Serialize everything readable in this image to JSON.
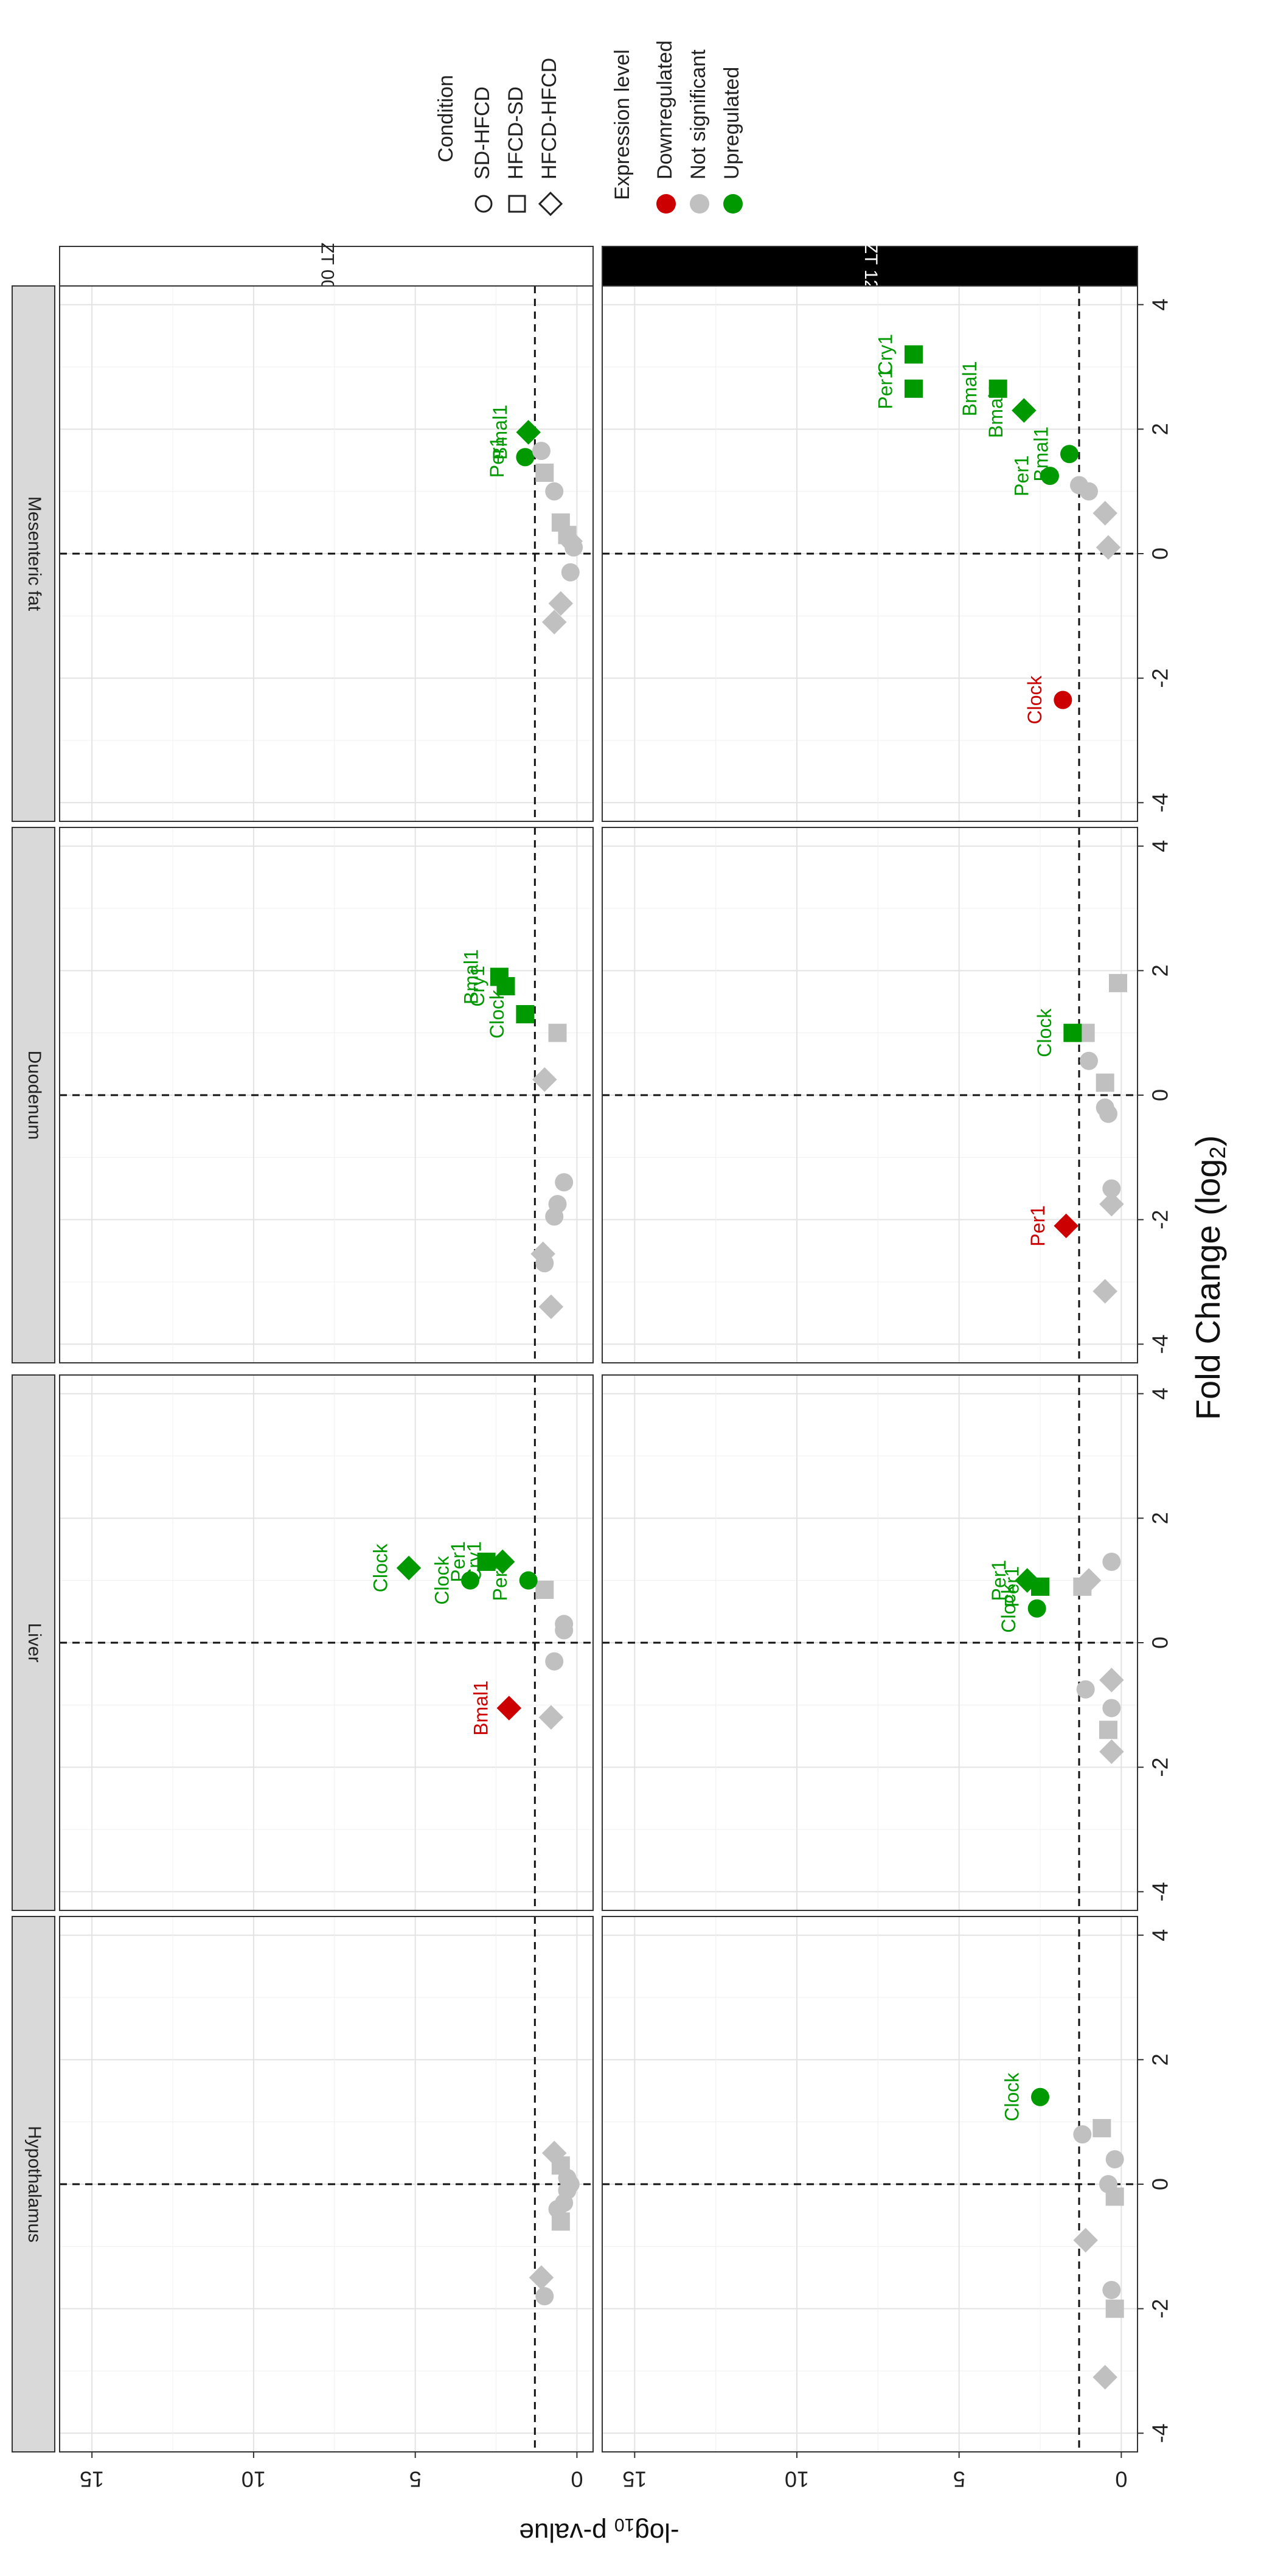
{
  "chart_data": {
    "type": "scatter",
    "orientation_note": "figure rotated 90 degrees clockwise",
    "title": "",
    "xlabel_main": "Fold Change (log",
    "xlabel_sub": "2",
    "xlabel_close": ")",
    "ylabel_main": "-log",
    "ylabel_sub": "10",
    "ylabel_rest": " p-value",
    "xlim": [
      -4.3,
      4.3
    ],
    "ylim": [
      -0.5,
      16
    ],
    "x_ticks": [
      -4,
      -2,
      0,
      2,
      4
    ],
    "x_tick_labels": [
      "-4",
      "-2",
      "0",
      "2",
      "4"
    ],
    "y_ticks": [
      0,
      5,
      10,
      15
    ],
    "y_tick_labels": [
      "0",
      "5",
      "10",
      "15"
    ],
    "fc_threshold": 0,
    "p_threshold": 1.3,
    "tissues": [
      "Hypothalamus",
      "Liver",
      "Duodenum",
      "Mesenteric fat"
    ],
    "times": [
      "ZT 00",
      "ZT 12"
    ],
    "legend": {
      "condition_title": "Condition",
      "conditions": [
        {
          "key": "SD-HFCD",
          "label": "SD-HFCD",
          "shape": "circle"
        },
        {
          "key": "HFCD-SD",
          "label": "HFCD-SD",
          "shape": "square"
        },
        {
          "key": "HFCD-HFCD",
          "label": "HFCD-HFCD",
          "shape": "diamond"
        }
      ],
      "expression_title": "Expression level",
      "levels": [
        {
          "key": "down",
          "label": "Downregulated",
          "color": "#cc0000"
        },
        {
          "key": "ns",
          "label": "Not significant",
          "color": "#c0c0c0"
        },
        {
          "key": "up",
          "label": "Upregulated",
          "color": "#009900"
        }
      ]
    },
    "panels": [
      {
        "tissue": "Hypothalamus",
        "time": "ZT 00",
        "points": [
          {
            "x": -1.8,
            "y": 1.0,
            "s": "circle",
            "c": "ns"
          },
          {
            "x": -1.5,
            "y": 1.1,
            "s": "diamond",
            "c": "ns"
          },
          {
            "x": -0.6,
            "y": 0.5,
            "s": "square",
            "c": "ns"
          },
          {
            "x": -0.4,
            "y": 0.6,
            "s": "circle",
            "c": "ns"
          },
          {
            "x": -0.3,
            "y": 0.4,
            "s": "circle",
            "c": "ns"
          },
          {
            "x": -0.1,
            "y": 0.3,
            "s": "circle",
            "c": "ns"
          },
          {
            "x": 0.0,
            "y": 0.2,
            "s": "circle",
            "c": "ns"
          },
          {
            "x": 0.1,
            "y": 0.3,
            "s": "circle",
            "c": "ns"
          },
          {
            "x": 0.3,
            "y": 0.5,
            "s": "square",
            "c": "ns"
          },
          {
            "x": 0.5,
            "y": 0.7,
            "s": "diamond",
            "c": "ns"
          }
        ]
      },
      {
        "tissue": "Hypothalamus",
        "time": "ZT 12",
        "points": [
          {
            "x": -3.1,
            "y": 0.5,
            "s": "diamond",
            "c": "ns"
          },
          {
            "x": -2.0,
            "y": 0.2,
            "s": "square",
            "c": "ns"
          },
          {
            "x": -1.7,
            "y": 0.3,
            "s": "circle",
            "c": "ns"
          },
          {
            "x": -0.9,
            "y": 1.1,
            "s": "diamond",
            "c": "ns"
          },
          {
            "x": -0.2,
            "y": 0.2,
            "s": "square",
            "c": "ns"
          },
          {
            "x": 0.0,
            "y": 0.4,
            "s": "circle",
            "c": "ns"
          },
          {
            "x": 0.4,
            "y": 0.2,
            "s": "circle",
            "c": "ns"
          },
          {
            "x": 0.8,
            "y": 1.2,
            "s": "circle",
            "c": "ns"
          },
          {
            "x": 0.9,
            "y": 0.6,
            "s": "square",
            "c": "ns"
          },
          {
            "x": 1.4,
            "y": 2.5,
            "s": "circle",
            "c": "up",
            "label": "Clock"
          }
        ]
      },
      {
        "tissue": "Liver",
        "time": "ZT 00",
        "points": [
          {
            "x": -1.2,
            "y": 0.8,
            "s": "diamond",
            "c": "ns"
          },
          {
            "x": -1.05,
            "y": 2.1,
            "s": "diamond",
            "c": "down",
            "label": "Bmal1"
          },
          {
            "x": -0.3,
            "y": 0.7,
            "s": "circle",
            "c": "ns"
          },
          {
            "x": 0.2,
            "y": 0.4,
            "s": "circle",
            "c": "ns"
          },
          {
            "x": 0.3,
            "y": 0.4,
            "s": "circle",
            "c": "ns"
          },
          {
            "x": 0.85,
            "y": 1.0,
            "s": "square",
            "c": "ns"
          },
          {
            "x": 1.0,
            "y": 1.5,
            "s": "circle",
            "c": "up",
            "label": "Per1"
          },
          {
            "x": 1.0,
            "y": 3.3,
            "s": "circle",
            "c": "up",
            "label": "Clock"
          },
          {
            "x": 1.2,
            "y": 5.2,
            "s": "diamond",
            "c": "up",
            "label": "Clock"
          },
          {
            "x": 1.3,
            "y": 2.8,
            "s": "square",
            "c": "up",
            "label": "Per1"
          },
          {
            "x": 1.3,
            "y": 2.3,
            "s": "diamond",
            "c": "up",
            "label": "Cry1"
          }
        ]
      },
      {
        "tissue": "Liver",
        "time": "ZT 12",
        "points": [
          {
            "x": -1.75,
            "y": 0.3,
            "s": "diamond",
            "c": "ns"
          },
          {
            "x": -1.4,
            "y": 0.4,
            "s": "square",
            "c": "ns"
          },
          {
            "x": -1.05,
            "y": 0.3,
            "s": "circle",
            "c": "ns"
          },
          {
            "x": -0.75,
            "y": 1.1,
            "s": "circle",
            "c": "ns"
          },
          {
            "x": -0.6,
            "y": 0.3,
            "s": "diamond",
            "c": "ns"
          },
          {
            "x": 0.55,
            "y": 2.6,
            "s": "circle",
            "c": "up",
            "label": "Clock"
          },
          {
            "x": 0.9,
            "y": 1.2,
            "s": "square",
            "c": "ns"
          },
          {
            "x": 0.9,
            "y": 2.5,
            "s": "square",
            "c": "up",
            "label": "Per1"
          },
          {
            "x": 1.0,
            "y": 1.0,
            "s": "diamond",
            "c": "ns"
          },
          {
            "x": 1.0,
            "y": 2.9,
            "s": "diamond",
            "c": "up",
            "label": "Per1"
          },
          {
            "x": 1.3,
            "y": 0.3,
            "s": "circle",
            "c": "ns"
          }
        ]
      },
      {
        "tissue": "Duodenum",
        "time": "ZT 00",
        "points": [
          {
            "x": -3.4,
            "y": 0.8,
            "s": "diamond",
            "c": "ns"
          },
          {
            "x": -2.7,
            "y": 1.0,
            "s": "circle",
            "c": "ns"
          },
          {
            "x": -2.55,
            "y": 1.05,
            "s": "diamond",
            "c": "ns"
          },
          {
            "x": -1.95,
            "y": 0.7,
            "s": "circle",
            "c": "ns"
          },
          {
            "x": -1.75,
            "y": 0.6,
            "s": "circle",
            "c": "ns"
          },
          {
            "x": -1.4,
            "y": 0.4,
            "s": "circle",
            "c": "ns"
          },
          {
            "x": 0.25,
            "y": 1.0,
            "s": "diamond",
            "c": "ns"
          },
          {
            "x": 1.0,
            "y": 0.6,
            "s": "square",
            "c": "ns"
          },
          {
            "x": 1.3,
            "y": 1.6,
            "s": "square",
            "c": "up",
            "label": "Clock"
          },
          {
            "x": 1.75,
            "y": 2.2,
            "s": "square",
            "c": "up",
            "label": "Cry1"
          },
          {
            "x": 1.9,
            "y": 2.4,
            "s": "square",
            "c": "up",
            "label": "Bmal1"
          }
        ]
      },
      {
        "tissue": "Duodenum",
        "time": "ZT 12",
        "points": [
          {
            "x": -3.15,
            "y": 0.5,
            "s": "diamond",
            "c": "ns"
          },
          {
            "x": -2.1,
            "y": 1.7,
            "s": "diamond",
            "c": "down",
            "label": "Per1"
          },
          {
            "x": -1.75,
            "y": 0.3,
            "s": "diamond",
            "c": "ns"
          },
          {
            "x": -1.5,
            "y": 0.3,
            "s": "circle",
            "c": "ns"
          },
          {
            "x": -0.3,
            "y": 0.4,
            "s": "circle",
            "c": "ns"
          },
          {
            "x": -0.2,
            "y": 0.5,
            "s": "circle",
            "c": "ns"
          },
          {
            "x": 0.2,
            "y": 0.5,
            "s": "square",
            "c": "ns"
          },
          {
            "x": 0.55,
            "y": 1.0,
            "s": "circle",
            "c": "ns"
          },
          {
            "x": 1.0,
            "y": 1.1,
            "s": "square",
            "c": "ns"
          },
          {
            "x": 1.0,
            "y": 1.5,
            "s": "square",
            "c": "up",
            "label": "Clock"
          },
          {
            "x": 1.8,
            "y": 0.1,
            "s": "square",
            "c": "ns"
          }
        ]
      },
      {
        "tissue": "Mesenteric fat",
        "time": "ZT 00",
        "points": [
          {
            "x": -1.1,
            "y": 0.7,
            "s": "diamond",
            "c": "ns"
          },
          {
            "x": -0.8,
            "y": 0.5,
            "s": "diamond",
            "c": "ns"
          },
          {
            "x": -0.3,
            "y": 0.2,
            "s": "circle",
            "c": "ns"
          },
          {
            "x": 0.1,
            "y": 0.1,
            "s": "circle",
            "c": "ns"
          },
          {
            "x": 0.2,
            "y": 0.2,
            "s": "diamond",
            "c": "ns"
          },
          {
            "x": 0.3,
            "y": 0.3,
            "s": "square",
            "c": "ns"
          },
          {
            "x": 0.5,
            "y": 0.5,
            "s": "square",
            "c": "ns"
          },
          {
            "x": 1.0,
            "y": 0.7,
            "s": "circle",
            "c": "ns"
          },
          {
            "x": 1.3,
            "y": 1.0,
            "s": "square",
            "c": "ns"
          },
          {
            "x": 1.55,
            "y": 1.6,
            "s": "circle",
            "c": "up",
            "label": "Per1"
          },
          {
            "x": 1.65,
            "y": 1.1,
            "s": "circle",
            "c": "ns"
          },
          {
            "x": 1.95,
            "y": 1.5,
            "s": "diamond",
            "c": "up",
            "label": "Bmal1"
          }
        ]
      },
      {
        "tissue": "Mesenteric fat",
        "time": "ZT 12",
        "points": [
          {
            "x": -2.35,
            "y": 1.8,
            "s": "circle",
            "c": "down",
            "label": "Clock"
          },
          {
            "x": 0.1,
            "y": 0.4,
            "s": "diamond",
            "c": "ns"
          },
          {
            "x": 0.65,
            "y": 0.5,
            "s": "diamond",
            "c": "ns"
          },
          {
            "x": 1.0,
            "y": 1.0,
            "s": "circle",
            "c": "ns"
          },
          {
            "x": 1.1,
            "y": 1.3,
            "s": "circle",
            "c": "ns"
          },
          {
            "x": 1.25,
            "y": 2.2,
            "s": "circle",
            "c": "up",
            "label": "Per1"
          },
          {
            "x": 1.6,
            "y": 1.6,
            "s": "circle",
            "c": "up",
            "label": "Bmal1"
          },
          {
            "x": 2.3,
            "y": 3.0,
            "s": "diamond",
            "c": "up",
            "label": "Bmal1"
          },
          {
            "x": 2.65,
            "y": 3.8,
            "s": "square",
            "c": "up",
            "label": "Bmal1"
          },
          {
            "x": 2.65,
            "y": 6.4,
            "s": "square",
            "c": "up",
            "label": "Per1"
          },
          {
            "x": 3.2,
            "y": 6.4,
            "s": "square",
            "c": "up",
            "label": "Cry1"
          }
        ]
      }
    ]
  }
}
